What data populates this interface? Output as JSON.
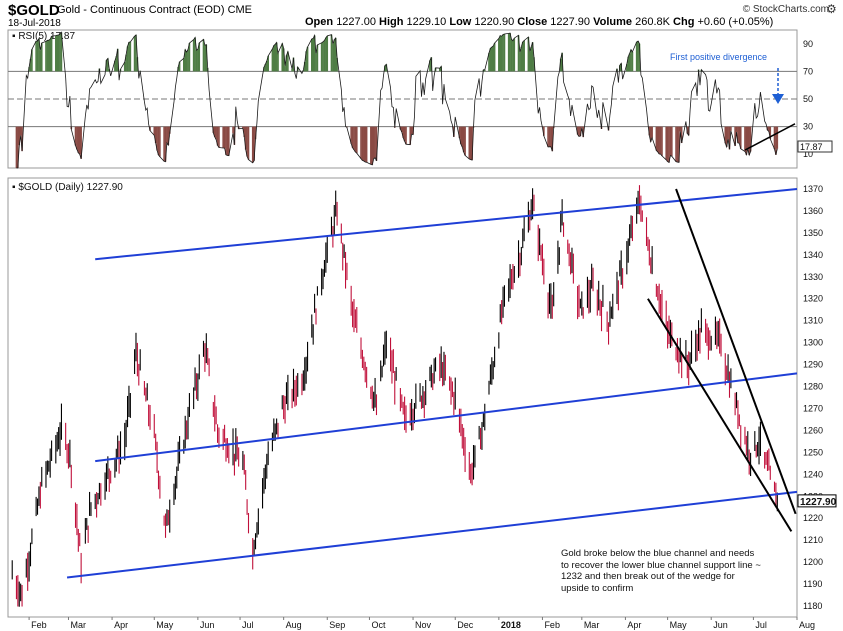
{
  "header": {
    "symbol": "$GOLD",
    "description": "Gold - Continuous Contract (EOD)",
    "exchange": "CME",
    "date": "18-Jul-2018",
    "open_label": "Open",
    "open": "1227.00",
    "high_label": "High",
    "high": "1229.10",
    "low_label": "Low",
    "low": "1220.90",
    "close_label": "Close",
    "close": "1227.90",
    "volume_label": "Volume",
    "volume": "260.8K",
    "chg_label": "Chg",
    "chg": "+0.60 (+0.05%)",
    "brand": "© StockCharts.com"
  },
  "chart_data": [
    {
      "type": "line",
      "title": "RSI(5) 17.87",
      "series": [
        {
          "name": "RSI(5)",
          "last_value": "17.87"
        }
      ],
      "y_ticks": [
        "90",
        "70",
        "50",
        "30",
        "10"
      ],
      "reference_lines": [
        70,
        50,
        30
      ],
      "ylim": [
        0,
        100
      ],
      "annotation": "First positive divergence",
      "colors": {
        "line": "#1a1a1a",
        "overbought_fill": "#4f7d45",
        "oversold_fill": "#8a4a44",
        "annotation": "#1e5fd4"
      }
    },
    {
      "type": "ohlc",
      "title": "$GOLD (Daily) 1227.90",
      "last_price_label": "1227.90",
      "x_labels": [
        "Feb",
        "Mar",
        "Apr",
        "May",
        "Jun",
        "Jul",
        "Aug",
        "Sep",
        "Oct",
        "Nov",
        "Dec",
        "2018",
        "Feb",
        "Mar",
        "Apr",
        "May",
        "Jun",
        "Jul",
        "Aug"
      ],
      "y_ticks": [
        "1370",
        "1360",
        "1350",
        "1340",
        "1330",
        "1320",
        "1310",
        "1300",
        "1290",
        "1280",
        "1270",
        "1260",
        "1250",
        "1240",
        "1230",
        "1220",
        "1210",
        "1200",
        "1190",
        "1180"
      ],
      "ylim": [
        1175,
        1375
      ],
      "x_range": [
        "2017-01-17",
        "2018-08-01"
      ],
      "path_points": [
        [
          "2017-01-20",
          1195
        ],
        [
          "2017-01-27",
          1185
        ],
        [
          "2017-02-10",
          1235
        ],
        [
          "2017-02-24",
          1260
        ],
        [
          "2017-03-02",
          1250
        ],
        [
          "2017-03-10",
          1200
        ],
        [
          "2017-03-17",
          1225
        ],
        [
          "2017-04-10",
          1255
        ],
        [
          "2017-04-18",
          1295
        ],
        [
          "2017-05-01",
          1258
        ],
        [
          "2017-05-09",
          1215
        ],
        [
          "2017-05-25",
          1265
        ],
        [
          "2017-06-06",
          1298
        ],
        [
          "2017-06-15",
          1260
        ],
        [
          "2017-07-03",
          1245
        ],
        [
          "2017-07-10",
          1205
        ],
        [
          "2017-07-20",
          1245
        ],
        [
          "2017-07-31",
          1270
        ],
        [
          "2017-08-15",
          1285
        ],
        [
          "2017-08-28",
          1330
        ],
        [
          "2017-09-08",
          1360
        ],
        [
          "2017-09-20",
          1310
        ],
        [
          "2017-10-06",
          1270
        ],
        [
          "2017-10-13",
          1300
        ],
        [
          "2017-10-26",
          1265
        ],
        [
          "2017-11-06",
          1275
        ],
        [
          "2017-11-20",
          1290
        ],
        [
          "2017-12-01",
          1275
        ],
        [
          "2017-12-12",
          1240
        ],
        [
          "2017-12-20",
          1260
        ],
        [
          "2018-01-05",
          1320
        ],
        [
          "2018-01-16",
          1340
        ],
        [
          "2018-01-25",
          1363
        ],
        [
          "2018-02-08",
          1312
        ],
        [
          "2018-02-15",
          1358
        ],
        [
          "2018-02-28",
          1315
        ],
        [
          "2018-03-09",
          1325
        ],
        [
          "2018-03-20",
          1310
        ],
        [
          "2018-04-02",
          1340
        ],
        [
          "2018-04-11",
          1365
        ],
        [
          "2018-04-20",
          1335
        ],
        [
          "2018-05-01",
          1305
        ],
        [
          "2018-05-15",
          1290
        ],
        [
          "2018-05-25",
          1305
        ],
        [
          "2018-06-08",
          1300
        ],
        [
          "2018-06-15",
          1280
        ],
        [
          "2018-06-28",
          1250
        ],
        [
          "2018-07-05",
          1255
        ],
        [
          "2018-07-12",
          1240
        ],
        [
          "2018-07-18",
          1228
        ]
      ],
      "trendlines": [
        {
          "name": "upper blue channel",
          "color": "#1f3fd6",
          "from": [
            "2017-03-20",
            1338
          ],
          "to": [
            "2018-08-01",
            1370
          ]
        },
        {
          "name": "middle blue channel",
          "color": "#1f3fd6",
          "from": [
            "2017-03-20",
            1246
          ],
          "to": [
            "2018-08-01",
            1286
          ]
        },
        {
          "name": "lower blue channel",
          "color": "#1f3fd6",
          "from": [
            "2017-02-28",
            1193
          ],
          "to": [
            "2018-08-01",
            1232
          ]
        },
        {
          "name": "wedge upper",
          "color": "#000000",
          "from": [
            "2018-05-07",
            1370
          ],
          "to": [
            "2018-07-31",
            1222
          ]
        },
        {
          "name": "wedge lower",
          "color": "#000000",
          "from": [
            "2018-04-17",
            1320
          ],
          "to": [
            "2018-07-28",
            1214
          ]
        }
      ],
      "annotation": "Gold broke below the blue channel and needs to recover the lower blue channel support line ~ 1232 and then break out of the wedge for upside to confirm",
      "colors": {
        "up_bar": "#000000",
        "down_bar": "#c0103a",
        "channel": "#1f3fd6"
      }
    }
  ]
}
